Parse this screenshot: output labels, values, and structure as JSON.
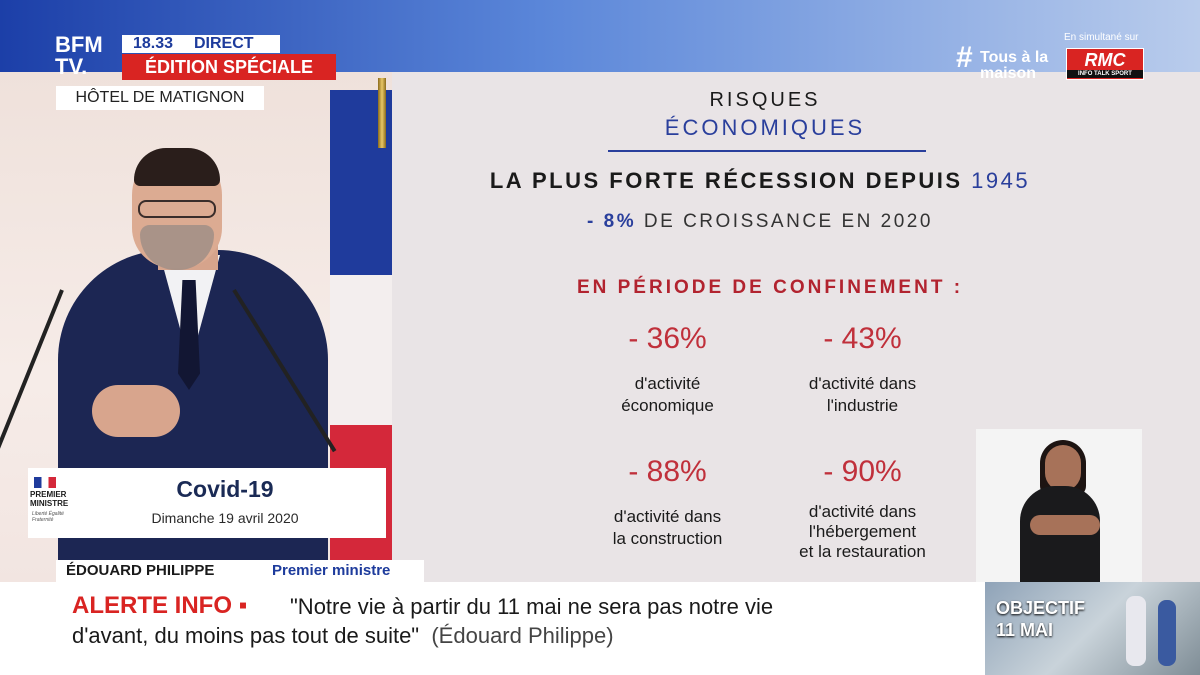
{
  "channel": {
    "logo_line1": "BFM",
    "logo_line2": "TV.",
    "time": "18.33",
    "live": "DIRECT",
    "edition": "ÉDITION SPÉCIALE",
    "location": "HÔTEL DE MATIGNON"
  },
  "top_right": {
    "hashtag_symbol": "#",
    "hashtag_line1": "Tous à la",
    "hashtag_line2": "maison",
    "simulcast": "En simultané sur",
    "rmc": "RMC",
    "rmc_sub": "INFO TALK SPORT"
  },
  "podium": {
    "institution_line1": "PREMIER",
    "institution_line2": "MINISTRE",
    "motto": "Liberté Égalité Fraternité",
    "title": "Covid-19",
    "date": "Dimanche 19 avril 2020"
  },
  "slide": {
    "title_line1": "RISQUES",
    "title_line2": "ÉCONOMIQUES",
    "headline": "LA PLUS FORTE RÉCESSION DEPUIS",
    "headline_year": "1945",
    "growth_value": "- 8%",
    "growth_text": "DE CROISSANCE EN 2020",
    "confinement": "EN PÉRIODE DE CONFINEMENT :",
    "stats": [
      {
        "value": "- 36%",
        "label_line1": "d'activité",
        "label_line2": "économique",
        "label_line3": ""
      },
      {
        "value": "- 43%",
        "label_line1": "d'activité dans",
        "label_line2": "l'industrie",
        "label_line3": ""
      },
      {
        "value": "- 88%",
        "label_line1": "d'activité dans",
        "label_line2": "la construction",
        "label_line3": ""
      },
      {
        "value": "- 90%",
        "label_line1": "d'activité dans",
        "label_line2": "l'hébergement",
        "label_line3": "et la restauration"
      }
    ]
  },
  "lower_third": {
    "name": "ÉDOUARD PHILIPPE",
    "role": "Premier ministre"
  },
  "ticker": {
    "label": "ALERTE INFO ▪",
    "quote_line1": "\"Notre vie à partir du 11 mai ne sera pas notre vie",
    "quote_line2": "d'avant, du moins pas tout de suite\"",
    "attribution": "(Édouard Philippe)"
  },
  "promo": {
    "line1": "OBJECTIF",
    "line2": "11 MAI"
  },
  "colors": {
    "brand_blue": "#1d3b9c",
    "alert_red": "#d92422",
    "slide_red": "#c0303b"
  }
}
